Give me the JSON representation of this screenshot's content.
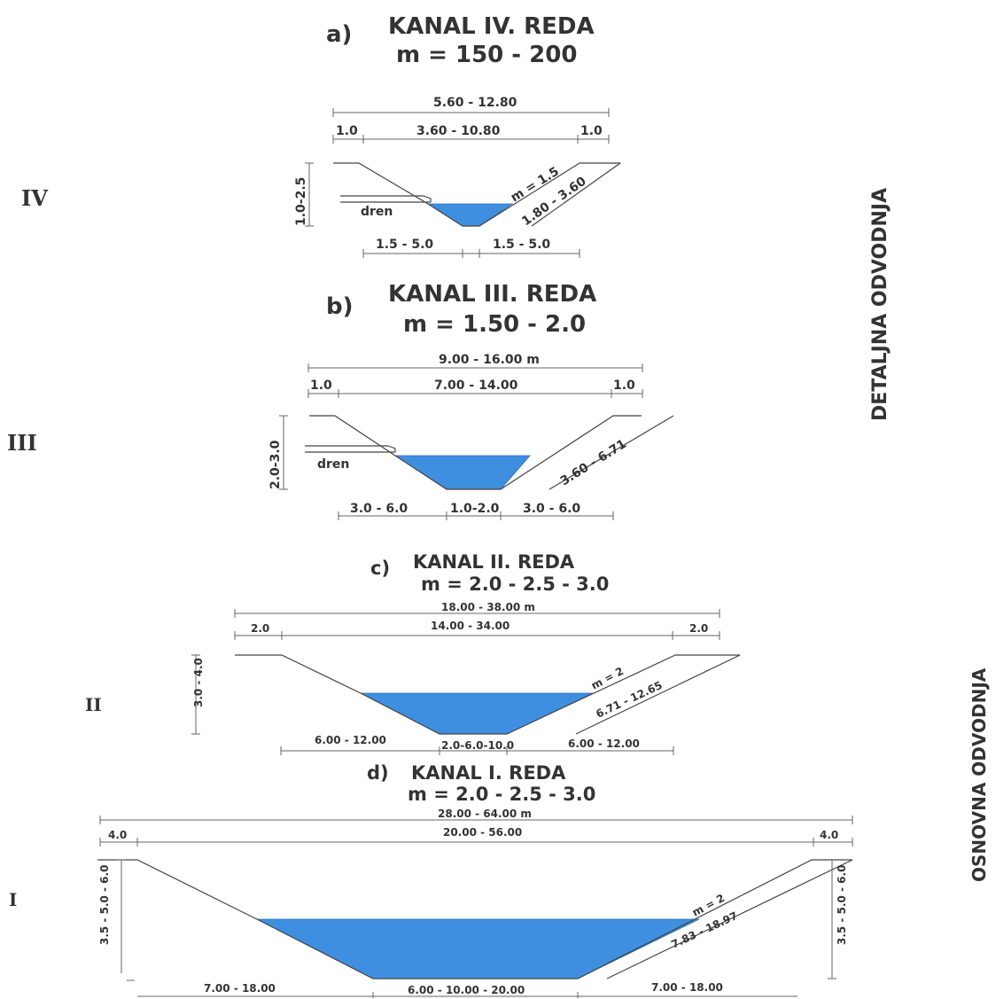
{
  "side_labels": {
    "top": "DETALJNA ODVODNJA",
    "bottom": "OSNOVNA ODVODNJA"
  },
  "sections": [
    {
      "letter": "a)",
      "title": "KANAL IV. REDA",
      "m_line": "m = 150 - 200",
      "roman": "IV",
      "dims": {
        "total": "5.60 - 12.80",
        "left_berm": "1.0",
        "middle": "3.60 - 10.80",
        "right_berm": "1.0",
        "depth": "1.0-2.5",
        "dren": "dren",
        "slope": "m = 1.5",
        "slope_len": "1.80 - 3.60",
        "bottom_left": "1.5 - 5.0",
        "bottom_right": "1.5 - 5.0"
      }
    },
    {
      "letter": "b)",
      "title": "KANAL III. REDA",
      "m_line": "m = 1.50 - 2.0",
      "roman": "III",
      "dims": {
        "total": "9.00 - 16.00 m",
        "left_berm": "1.0",
        "middle": "7.00 - 14.00",
        "right_berm": "1.0",
        "depth": "2.0-3.0",
        "dren": "dren",
        "slope_len": "3.60 - 6.71",
        "bottom_left": "3.0 - 6.0",
        "bottom_mid": "1.0-2.0",
        "bottom_right": "3.0 - 6.0"
      }
    },
    {
      "letter": "c)",
      "title": "KANAL II. REDA",
      "m_line": "m = 2.0 - 2.5 - 3.0",
      "roman": "II",
      "dims": {
        "total": "18.00 - 38.00 m",
        "left_berm": "2.0",
        "middle": "14.00 - 34.00",
        "right_berm": "2.0",
        "depth": "3.0 - 4.0",
        "slope": "m = 2",
        "slope_len": "6.71 - 12.65",
        "bottom_left": "6.00 - 12.00",
        "bottom_mid": "2.0-6.0-10.0",
        "bottom_right": "6.00 - 12.00"
      }
    },
    {
      "letter": "d)",
      "title": "KANAL I. REDA",
      "m_line": "m = 2.0 - 2.5 - 3.0",
      "roman": "I",
      "dims": {
        "total": "28.00 - 64.00 m",
        "left_berm": "4.0",
        "middle": "20.00 - 56.00",
        "right_berm": "4.0",
        "depth_left": "3.5 - 5.0 - 6.0",
        "depth_right": "3.5 - 5.0 - 6.0",
        "slope": "m = 2",
        "slope_len": "7.83 - 18.97",
        "bottom_left": "7.00 - 18.00",
        "bottom_mid": "6.00 - 10.00 - 20.00",
        "bottom_right": "7.00 - 18.00"
      }
    }
  ]
}
